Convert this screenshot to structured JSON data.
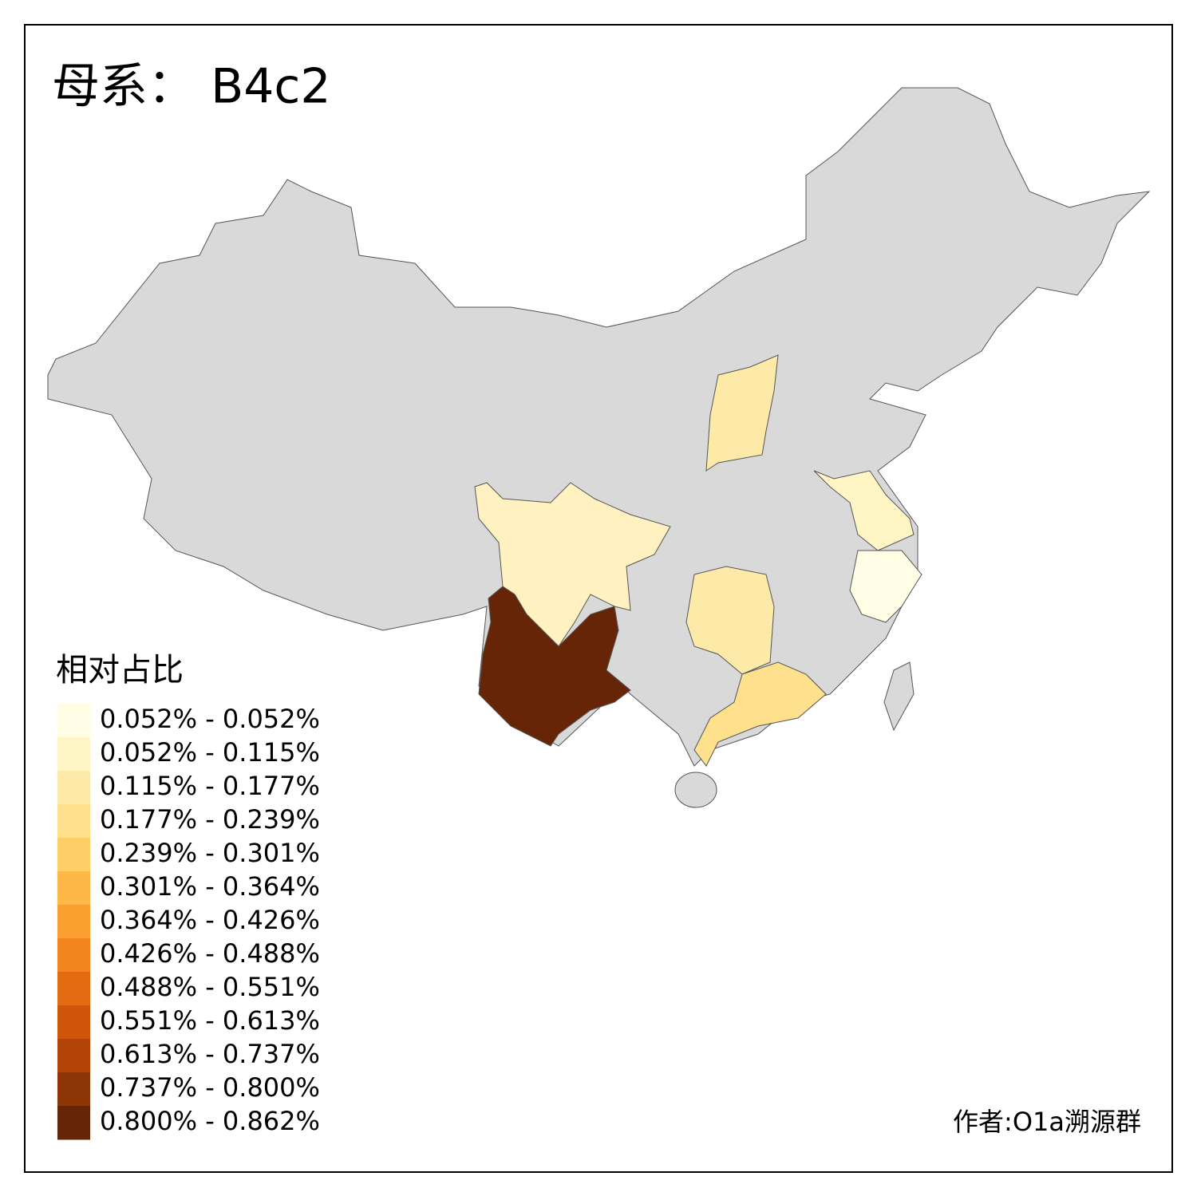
{
  "title": "母系： B4c2",
  "legend": {
    "title": "相对占比",
    "items": [
      {
        "label": "0.052% - 0.052%",
        "color": "#fffde3"
      },
      {
        "label": "0.052% - 0.115%",
        "color": "#fff5c5"
      },
      {
        "label": "0.115% - 0.177%",
        "color": "#feeaa8"
      },
      {
        "label": "0.177% - 0.239%",
        "color": "#fee08d"
      },
      {
        "label": "0.239% - 0.301%",
        "color": "#fecf66"
      },
      {
        "label": "0.301% - 0.364%",
        "color": "#fdb848"
      },
      {
        "label": "0.364% - 0.426%",
        "color": "#fb9f30"
      },
      {
        "label": "0.426% - 0.488%",
        "color": "#f3851f"
      },
      {
        "label": "0.488% - 0.551%",
        "color": "#e56b13"
      },
      {
        "label": "0.551% - 0.613%",
        "color": "#d1540b"
      },
      {
        "label": "0.613% - 0.737%",
        "color": "#b34307"
      },
      {
        "label": "0.737% - 0.800%",
        "color": "#8f3606"
      },
      {
        "label": "0.800% - 0.862%",
        "color": "#662506"
      }
    ]
  },
  "credit": "作者:O1a溯源群"
}
